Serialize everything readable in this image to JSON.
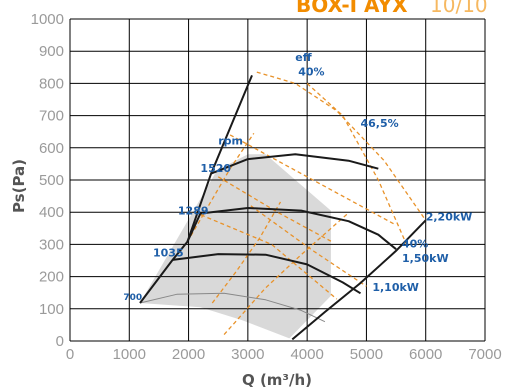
{
  "title": {
    "bold": "BOX-I AYX",
    "light": "10/10"
  },
  "chart_data": {
    "type": "line",
    "title": "BOX-I AYX 10/10",
    "xlabel": "Q (m³/h)",
    "ylabel": "Ps(Pa)",
    "xlim": [
      0,
      7000
    ],
    "ylim": [
      0,
      1000
    ],
    "xticks": [
      "0",
      "1000",
      "2000",
      "3000",
      "4000",
      "5000",
      "6000",
      "7000"
    ],
    "yticks": [
      "0",
      "100",
      "200",
      "300",
      "400",
      "500",
      "600",
      "700",
      "800",
      "900",
      "1000"
    ],
    "grid": true,
    "colors": {
      "fan_curve": "#1a1a1a",
      "thin_curve": "#888888",
      "guide": "#e8922a",
      "label": "#1f5fa8",
      "shade": "#d9d9d9",
      "tick": "#9a9a9a",
      "title": "#f28c00",
      "title_light": "#f6b860"
    },
    "shaded_region": [
      [
        1180,
        118
      ],
      [
        2480,
        530
      ],
      [
        3000,
        580
      ],
      [
        3300,
        580
      ],
      [
        4400,
        405
      ],
      [
        4400,
        140
      ],
      [
        3700,
        8
      ],
      [
        2900,
        65
      ],
      [
        2200,
        105
      ],
      [
        1180,
        118
      ]
    ],
    "operating_envelope": {
      "left_boundary": [
        [
          1180,
          118
        ],
        [
          1730,
          252
        ],
        [
          1980,
          308
        ],
        [
          2380,
          520
        ],
        [
          3070,
          825
        ]
      ],
      "right_boundary": [
        [
          3750,
          5
        ],
        [
          4300,
          90
        ],
        [
          4900,
          180
        ],
        [
          5500,
          280
        ],
        [
          6000,
          375
        ]
      ]
    },
    "speed_curves": [
      {
        "rpm": "700",
        "points": [
          [
            1180,
            118
          ],
          [
            1800,
            145
          ],
          [
            2600,
            148
          ],
          [
            3300,
            128
          ],
          [
            3900,
            95
          ],
          [
            4300,
            60
          ]
        ],
        "style": "thin"
      },
      {
        "rpm": "1035",
        "points": [
          [
            1730,
            252
          ],
          [
            2500,
            270
          ],
          [
            3300,
            268
          ],
          [
            4000,
            238
          ],
          [
            4600,
            182
          ],
          [
            4900,
            148
          ]
        ]
      },
      {
        "rpm": "1289",
        "points": [
          [
            1980,
            308
          ],
          [
            2200,
            396
          ],
          [
            3000,
            413
          ],
          [
            3900,
            405
          ],
          [
            4700,
            372
          ],
          [
            5200,
            330
          ],
          [
            5500,
            285
          ]
        ]
      },
      {
        "rpm": "1520",
        "points": [
          [
            2380,
            520
          ],
          [
            3000,
            565
          ],
          [
            3800,
            580
          ],
          [
            4700,
            560
          ],
          [
            5200,
            535
          ]
        ]
      }
    ],
    "guide_lines": [
      {
        "points": [
          [
            1980,
            308
          ],
          [
            2700,
            535
          ],
          [
            3100,
            645
          ]
        ]
      },
      {
        "points": [
          [
            2400,
            118
          ],
          [
            2800,
            215
          ],
          [
            3200,
            320
          ],
          [
            3550,
            432
          ]
        ]
      },
      {
        "points": [
          [
            2600,
            20
          ],
          [
            3300,
            165
          ],
          [
            3900,
            268
          ],
          [
            4700,
            398
          ]
        ]
      },
      {
        "points": [
          [
            3050,
            420
          ],
          [
            4100,
            280
          ],
          [
            5000,
            170
          ]
        ]
      },
      {
        "points": [
          [
            2100,
            400
          ],
          [
            3400,
            300
          ],
          [
            4500,
            130
          ]
        ]
      },
      {
        "points": [
          [
            2500,
            510
          ],
          [
            3500,
            400
          ],
          [
            4400,
            310
          ]
        ]
      },
      {
        "points": [
          [
            2700,
            640
          ],
          [
            3900,
            520
          ],
          [
            5500,
            360
          ]
        ]
      },
      {
        "points": [
          [
            3150,
            835
          ],
          [
            3800,
            800
          ],
          [
            4500,
            715
          ],
          [
            5300,
            560
          ],
          [
            6000,
            375
          ]
        ]
      },
      {
        "points": [
          [
            4000,
            800
          ],
          [
            4600,
            700
          ],
          [
            5200,
            500
          ],
          [
            5700,
            290
          ]
        ]
      }
    ],
    "annotations": [
      {
        "text": "eff",
        "x": 3800,
        "y": 870
      },
      {
        "text": "40%",
        "x": 3850,
        "y": 825
      },
      {
        "text": "46,5%",
        "x": 4900,
        "y": 665
      },
      {
        "text": "rpm",
        "x": 2500,
        "y": 610
      },
      {
        "text": "1520",
        "x": 2200,
        "y": 525
      },
      {
        "text": "1289",
        "x": 1820,
        "y": 393
      },
      {
        "text": "1035",
        "x": 1400,
        "y": 263
      },
      {
        "text": "700",
        "x": 900,
        "y": 128
      },
      {
        "text": "2,20kW",
        "x": 6000,
        "y": 375
      },
      {
        "text": "40%",
        "x": 5600,
        "y": 290
      },
      {
        "text": "1,50kW",
        "x": 5600,
        "y": 245
      },
      {
        "text": "1,10kW",
        "x": 5100,
        "y": 155
      }
    ]
  }
}
